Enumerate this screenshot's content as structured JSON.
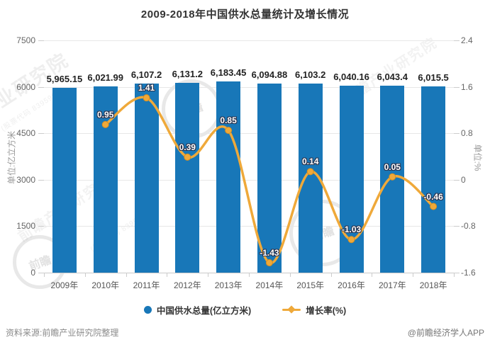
{
  "page": {
    "title": "2009-2018年中国供水总量统计及增长情况",
    "source_note": "资料来源:前瞻产业研究院整理",
    "credit": "@前瞻经济学人APP",
    "watermark": {
      "brand": "前瞻产业研究院",
      "brand_partial": "业研究院",
      "stock_code": "(股票代码 839599)",
      "logo_text": "前瞻"
    }
  },
  "chart_data": {
    "type": "combo",
    "title": "2009-2018年中国供水总量统计及增长情况",
    "categories": [
      "2009年",
      "2010年",
      "2011年",
      "2012年",
      "2013年",
      "2014年",
      "2015年",
      "2016年",
      "2017年",
      "2018年"
    ],
    "series": [
      {
        "name": "中国供水总量(亿立方米)",
        "type": "bar",
        "color": "#1877b8",
        "values": [
          5965.15,
          6021.99,
          6107.2,
          6131.2,
          6183.45,
          6094.88,
          6103.2,
          6040.16,
          6043.4,
          6015.5
        ],
        "labels": [
          "5,965.15",
          "6,021.99",
          "6,107.2",
          "6,131.2",
          "6,183.45",
          "6,094.88",
          "6,103.2",
          "6,040.16",
          "6,043.4",
          "6,015.5"
        ],
        "axis": "left"
      },
      {
        "name": "增长率(%)",
        "type": "line",
        "color": "#efa93a",
        "marker_edge_color": "#d98f1f",
        "values": [
          null,
          0.95,
          1.41,
          0.39,
          0.85,
          -1.43,
          0.14,
          -1.03,
          0.05,
          -0.46
        ],
        "labels": [
          null,
          "0.95",
          "1.41",
          "0.39",
          "0.85",
          "-1.43",
          "0.14",
          "-1.03",
          "0.05",
          "-0.46"
        ],
        "axis": "right"
      }
    ],
    "y_left": {
      "name": "单位:亿立方米",
      "min": 0,
      "max": 7500,
      "ticks": [
        "7500",
        "6000",
        "4500",
        "3000",
        "1500",
        "0"
      ]
    },
    "y_right": {
      "name": "单位:%",
      "min": -1.6,
      "max": 2.4,
      "ticks": [
        "2.4",
        "1.6",
        "0.8",
        "0",
        "-0.8",
        "-1.6"
      ]
    },
    "grid": true,
    "legend_position": "bottom"
  }
}
